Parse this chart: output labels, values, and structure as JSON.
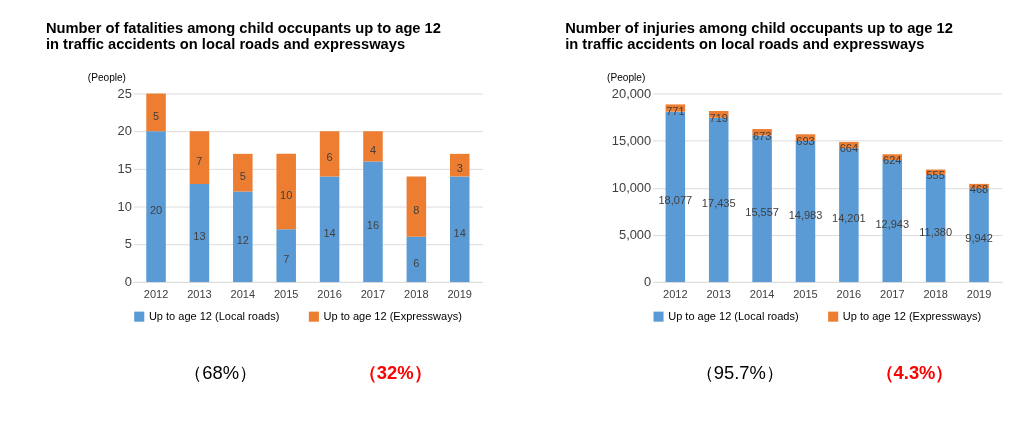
{
  "chart_data": [
    {
      "type": "bar",
      "title": "Number of fatalities among child occupants up to age 12\nin traffic accidents on local roads and expressways",
      "ylabel": "(People)",
      "categories": [
        "2012",
        "2013",
        "2014",
        "2015",
        "2016",
        "2017",
        "2018",
        "2019"
      ],
      "stacked": true,
      "data_labels": true,
      "grid": "y",
      "legend": "bottom",
      "series": [
        {
          "name": "Up to age 12 (Local roads)",
          "color": "#5b9bd5",
          "values": [
            20,
            13,
            12,
            7,
            14,
            16,
            6,
            14
          ]
        },
        {
          "name": "Up to age 12 (Expressways)",
          "color": "#ed7d31",
          "values": [
            5,
            7,
            5,
            10,
            6,
            4,
            8,
            3
          ]
        }
      ],
      "ylim": [
        0,
        25
      ],
      "yticks": [
        0,
        5,
        10,
        15,
        20,
        25
      ],
      "annotations": [
        "（68%）",
        "（32%）"
      ]
    },
    {
      "type": "bar",
      "title": "Number of injuries among child occupants up to age 12\nin traffic accidents on local roads and expressways",
      "ylabel": "(People)",
      "categories": [
        "2012",
        "2013",
        "2014",
        "2015",
        "2016",
        "2017",
        "2018",
        "2019"
      ],
      "stacked": true,
      "grid": "y",
      "legend": "bottom",
      "series": [
        {
          "name": "Up to age 12 (Local roads)",
          "color": "#5b9bd5",
          "values": [
            18077,
            17435,
            15557,
            14983,
            14201,
            12943,
            11380,
            9942
          ],
          "value_labels": [
            "18,077",
            "17,435",
            "15,557",
            "14,983",
            "14,201",
            "12,943",
            "11,380",
            "9,942"
          ]
        },
        {
          "name": "Up to age 12 (Expressways)",
          "color": "#ed7d31",
          "values": [
            771,
            719,
            673,
            693,
            664,
            624,
            555,
            468
          ],
          "value_labels": [
            "771",
            "719",
            "673",
            "693",
            "664",
            "624",
            "555",
            "468"
          ]
        }
      ],
      "ylim": [
        0,
        20000
      ],
      "yticks": [
        0,
        {
          "value": 5000,
          "label": "5,000"
        },
        {
          "value": 10000,
          "label": "10,000"
        },
        {
          "value": 15000,
          "label": "15,000"
        },
        {
          "value": 20000,
          "label": "20,000"
        }
      ],
      "annotations": [
        "（95.7%）",
        "（4.3%）"
      ]
    }
  ]
}
